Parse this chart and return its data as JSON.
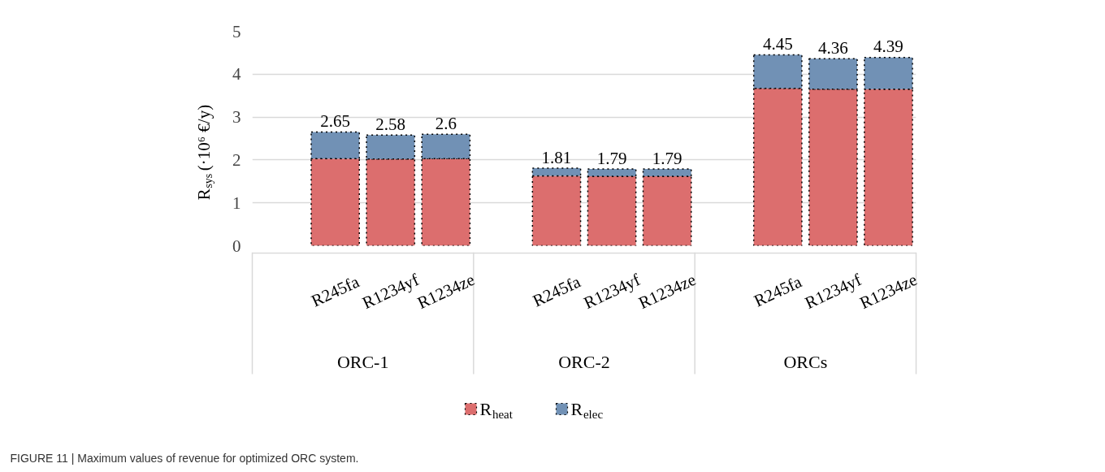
{
  "chart_data": {
    "type": "bar",
    "stacked": true,
    "ylabel": "R$_{sys}$ (·10⁶ €/y)",
    "categories": [
      "R245fa",
      "R1234yf",
      "R1234ze",
      "R245fa",
      "R1234yf",
      "R1234ze",
      "R245fa",
      "R1234yf",
      "R1234ze"
    ],
    "series": [
      {
        "name": "R$_{heat}$",
        "color": "#dc6e6e",
        "values": [
          2.03,
          2.02,
          2.03,
          1.63,
          1.62,
          1.62,
          3.67,
          3.65,
          3.65
        ]
      },
      {
        "name": "R$_{elec}$",
        "color": "#7191b5",
        "values": [
          0.62,
          0.56,
          0.57,
          0.18,
          0.17,
          0.17,
          0.78,
          0.71,
          0.74
        ]
      }
    ],
    "totals": [
      "2.65",
      "2.58",
      "2.6",
      "1.81",
      "1.79",
      "1.79",
      "4.45",
      "4.36",
      "4.39"
    ],
    "ylim": [
      0,
      5
    ],
    "yticks": [
      0,
      1,
      2,
      3,
      4,
      5
    ],
    "grid": "y",
    "legend": "bottom",
    "annotations": [
      "ORC-1",
      "ORC-2",
      "ORCs",
      "FIGURE 11 | Maximum values of revenue for optimized ORC system."
    ]
  }
}
